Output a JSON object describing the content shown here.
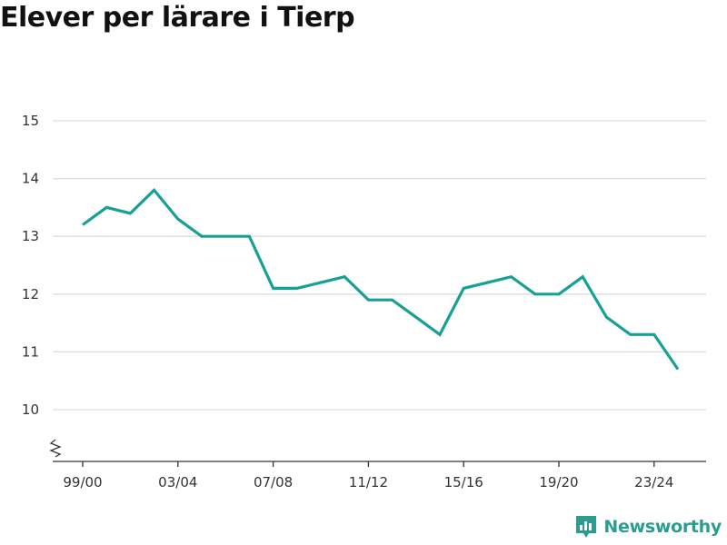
{
  "title": "Elever per lärare i Tierp",
  "brand": {
    "name": "Newsworthy",
    "icon": "newsworthy-logo-icon",
    "color": "#2a9d8f"
  },
  "chart_data": {
    "type": "line",
    "title": "Elever per lärare i Tierp",
    "xlabel": "",
    "ylabel": "",
    "x": [
      "99/00",
      "00/01",
      "01/02",
      "02/03",
      "03/04",
      "04/05",
      "05/06",
      "06/07",
      "07/08",
      "08/09",
      "09/10",
      "10/11",
      "11/12",
      "12/13",
      "13/14",
      "14/15",
      "15/16",
      "16/17",
      "17/18",
      "18/19",
      "19/20",
      "20/21",
      "21/22",
      "22/23",
      "23/24",
      "24/25"
    ],
    "x_tick_labels": [
      "99/00",
      "03/04",
      "07/08",
      "11/12",
      "15/16",
      "19/20",
      "23/24"
    ],
    "series": [
      {
        "name": "",
        "color": "#16a096",
        "values": [
          13.2,
          13.5,
          13.4,
          13.8,
          13.3,
          13.0,
          13.0,
          13.0,
          12.1,
          12.1,
          12.2,
          12.3,
          11.9,
          11.9,
          11.6,
          11.3,
          12.1,
          12.2,
          12.3,
          12.0,
          12.0,
          12.3,
          11.6,
          11.3,
          11.3,
          10.7
        ]
      }
    ],
    "ylim": [
      10,
      15
    ],
    "y_ticks": [
      10,
      11,
      12,
      13,
      14,
      15
    ],
    "y_axis_break": true,
    "grid": true,
    "colors": {
      "grid": "#dddddd",
      "axis": "#333333",
      "line": "#16a096"
    }
  }
}
